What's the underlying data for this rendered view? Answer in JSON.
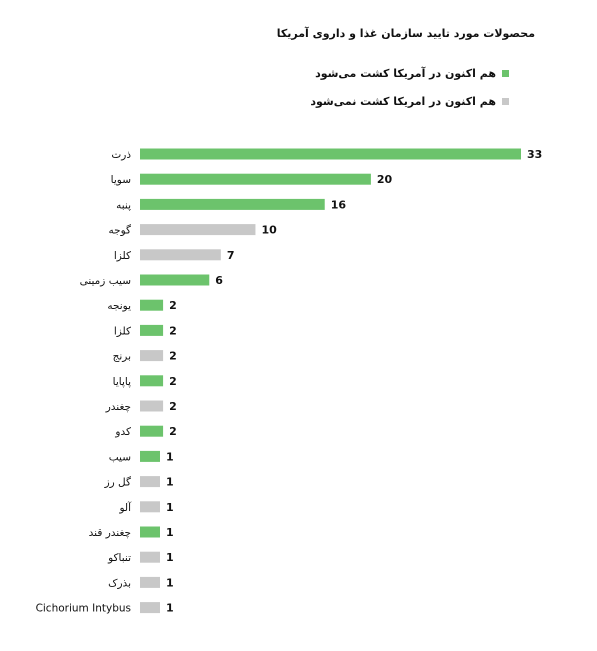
{
  "chart_data": {
    "type": "bar",
    "orientation": "horizontal",
    "title": "محصولات مورد تایید سازمان غذا و داروی آمریکا",
    "legend": [
      {
        "label": "هم اکنون در آمریکا کشت می‌شود",
        "color": "#6cc36c"
      },
      {
        "label": "هم اکنون در امریکا کشت نمی‌شود",
        "color": "#c8c8c8"
      }
    ],
    "categories": [
      "ذرت",
      "سویا",
      "پنبه",
      "گوجه",
      "کلزا",
      "سیب زمینی",
      "یونجه",
      "کلزا",
      "برنج",
      "پاپایا",
      "چغندر",
      "کدو",
      "سیب",
      "گل رز",
      "آلو",
      "چغندر قند",
      "تنباکو",
      "بذرک",
      "Cichorium Intybus"
    ],
    "values": [
      33,
      20,
      16,
      10,
      7,
      6,
      2,
      2,
      2,
      2,
      2,
      2,
      1,
      1,
      1,
      1,
      1,
      1,
      1
    ],
    "grown_in_us": [
      true,
      true,
      true,
      false,
      false,
      true,
      true,
      true,
      false,
      true,
      false,
      true,
      true,
      false,
      false,
      true,
      false,
      false,
      false
    ],
    "xlim": [
      0,
      33
    ],
    "grid": false,
    "legend_position": "top"
  },
  "colors": {
    "grown": "#6cc36c",
    "not_grown": "#c8c8c8",
    "text": "#111111"
  }
}
